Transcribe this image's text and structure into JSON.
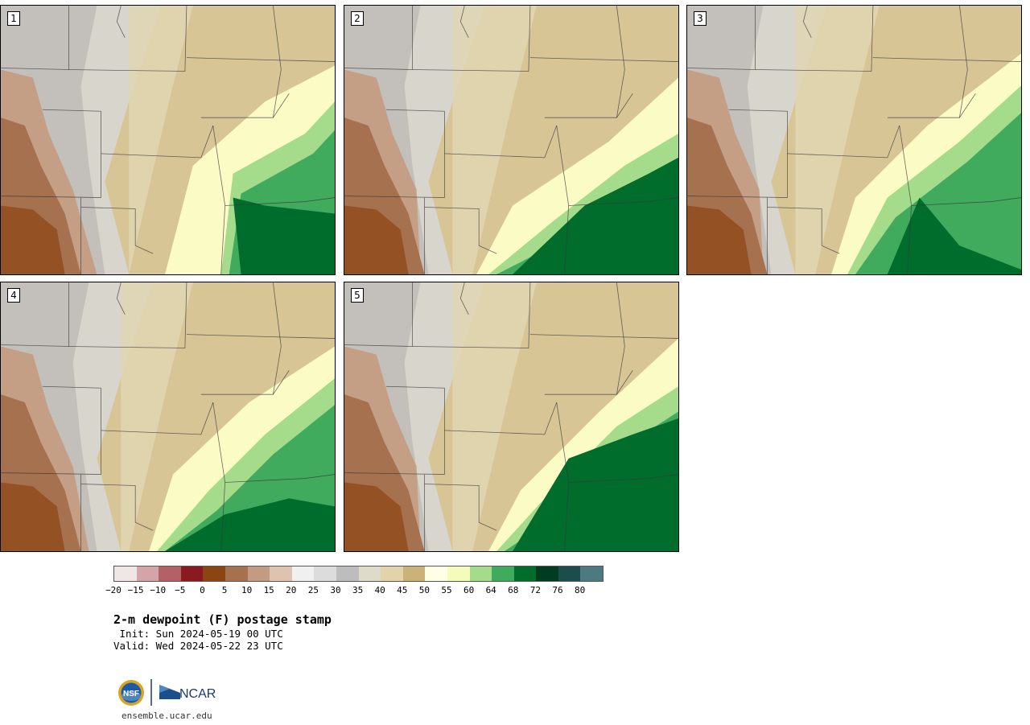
{
  "product": {
    "title": "2-m dewpoint (F) postage stamp",
    "init": " Init: Sun 2024-05-19 00 UTC",
    "valid": "Valid: Wed 2024-05-22 23 UTC",
    "url": "ensemble.ucar.edu"
  },
  "members": [
    {
      "label": "1"
    },
    {
      "label": "2"
    },
    {
      "label": "3"
    },
    {
      "label": "4"
    },
    {
      "label": "5"
    }
  ],
  "colorbar": {
    "colors": [
      "#f1e6e6",
      "#d4a4a8",
      "#b36166",
      "#8b1a20",
      "#8b4513",
      "#a6714f",
      "#c39a82",
      "#dec3b0",
      "#f0f0f0",
      "#dcdcdc",
      "#bdbdbd",
      "#dedbcb",
      "#e3d3ab",
      "#cbb278",
      "#ffffe6",
      "#f5fbbb",
      "#a5dc8c",
      "#41ab5d",
      "#006d2c",
      "#003d20",
      "#1b4d4d",
      "#4d7a80"
    ],
    "ticks": [
      "−20",
      "−15",
      "−10",
      "−5",
      "0",
      "5",
      "10",
      "15",
      "20",
      "25",
      "30",
      "35",
      "40",
      "45",
      "50",
      "55",
      "60",
      "64",
      "68",
      "72",
      "76",
      "80"
    ]
  },
  "logos": {
    "nsf": "NSF",
    "ncar": "NCAR"
  }
}
